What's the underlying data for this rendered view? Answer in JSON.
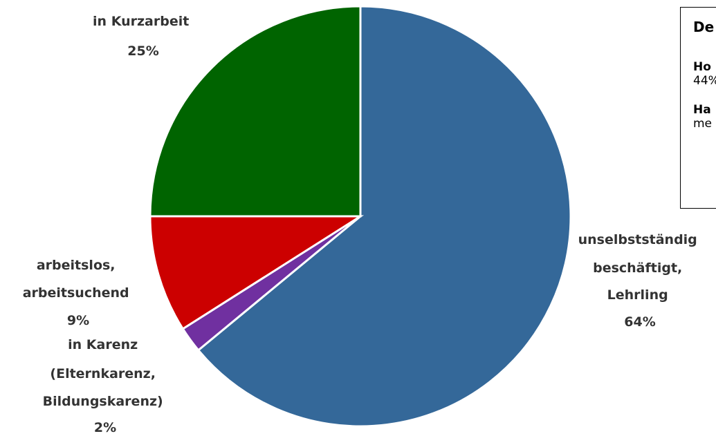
{
  "chart_data": {
    "type": "pie",
    "slices": [
      {
        "label_lines": [
          "unselbstständig",
          "beschäftigt,",
          "Lehrling"
        ],
        "percent_label": "64%",
        "value": 64,
        "color": "#346899"
      },
      {
        "label_lines": [
          "in Karenz",
          "(Elternkarenz,",
          "Bildungskarenz)"
        ],
        "percent_label": "2%",
        "value": 2,
        "color": "#7030A0"
      },
      {
        "label_lines": [
          "arbeitslos,",
          "arbeitsuchend"
        ],
        "percent_label": "9%",
        "value": 9,
        "color": "#CC0000"
      },
      {
        "label_lines": [
          "in Kurzarbeit"
        ],
        "percent_label": "25%",
        "value": 25,
        "color": "#006400"
      }
    ]
  },
  "info_box": {
    "title": "De",
    "items": [
      {
        "head": "Ho",
        "text": "44%"
      },
      {
        "head": "Ha",
        "text": "me"
      }
    ]
  }
}
